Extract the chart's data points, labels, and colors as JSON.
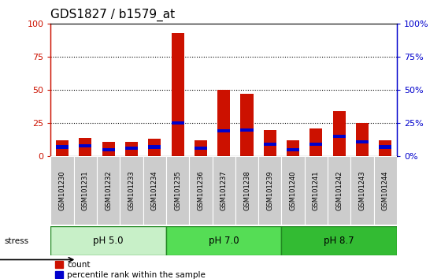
{
  "title": "GDS1827 / b1579_at",
  "samples": [
    "GSM101230",
    "GSM101231",
    "GSM101232",
    "GSM101233",
    "GSM101234",
    "GSM101235",
    "GSM101236",
    "GSM101237",
    "GSM101238",
    "GSM101239",
    "GSM101240",
    "GSM101241",
    "GSM101242",
    "GSM101243",
    "GSM101244"
  ],
  "count_values": [
    12,
    14,
    11,
    11,
    13,
    93,
    12,
    50,
    47,
    20,
    12,
    21,
    34,
    25,
    12
  ],
  "percentile_values": [
    7,
    8,
    5,
    6,
    7,
    25,
    6,
    19,
    20,
    9,
    5,
    9,
    15,
    11,
    7
  ],
  "groups": [
    {
      "label": "pH 5.0",
      "start": 0,
      "end": 5,
      "color": "#c8f0c8"
    },
    {
      "label": "pH 7.0",
      "start": 5,
      "end": 10,
      "color": "#55dd55"
    },
    {
      "label": "pH 8.7",
      "start": 10,
      "end": 15,
      "color": "#33bb33"
    }
  ],
  "stress_label": "stress",
  "ylim": [
    0,
    100
  ],
  "yticks": [
    0,
    25,
    50,
    75,
    100
  ],
  "bar_color_count": "#cc1100",
  "bar_color_pct": "#0000cc",
  "left_axis_color": "#cc1100",
  "right_axis_color": "#0000cc",
  "tick_label_bg": "#cccccc",
  "title_fontsize": 11,
  "bar_width": 0.55,
  "blue_bar_height": 2.5
}
